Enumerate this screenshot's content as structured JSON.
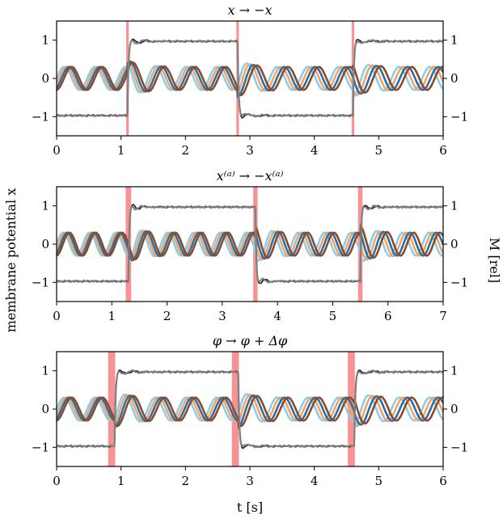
{
  "figure": {
    "ylabel_left": "membrane potential x",
    "ylabel_right": "M [rel]",
    "xlabel": "t [s]"
  },
  "colors": {
    "trace1": "#2b6ea6",
    "trace2": "#8b4a2b",
    "trace3": "#f4a460",
    "trace4": "#87cef0",
    "mean_dark": "#1a1a1a",
    "mean_gray": "#808080",
    "perturbation": "#f88080"
  },
  "chart_data": [
    {
      "type": "line",
      "title": "x → −x",
      "xlim": [
        0,
        6
      ],
      "ylim": [
        -1.5,
        1.5
      ],
      "xticks": [
        0,
        1,
        2,
        3,
        4,
        5,
        6
      ],
      "yticks_left": [
        -1,
        0,
        1
      ],
      "yticks_right": [
        -1,
        0,
        1
      ],
      "perturbations": [
        {
          "start": 1.08,
          "end": 1.12
        },
        {
          "start": 2.79,
          "end": 2.83
        },
        {
          "start": 4.58,
          "end": 4.62
        }
      ],
      "oscillators": {
        "frequency_hz": 2.1,
        "amplitude": 0.3,
        "phases": [
          0.0,
          0.5,
          1.0,
          1.5
        ]
      },
      "order_parameter": {
        "initial": -0.97,
        "switch_times": [
          1.1,
          2.81,
          4.6
        ],
        "levels": [
          0.97,
          -0.97,
          0.97
        ]
      }
    },
    {
      "type": "line",
      "title": "x⁽ᵃ⁾ → −x⁽ᵃ⁾",
      "xlim": [
        0,
        7
      ],
      "ylim": [
        -1.5,
        1.5
      ],
      "xticks": [
        0,
        1,
        2,
        3,
        4,
        5,
        6,
        7
      ],
      "yticks_left": [
        -1,
        0,
        1
      ],
      "yticks_right": [
        -1,
        0,
        1
      ],
      "perturbations": [
        {
          "start": 1.25,
          "end": 1.35
        },
        {
          "start": 3.56,
          "end": 3.64
        },
        {
          "start": 5.46,
          "end": 5.54
        }
      ],
      "oscillators": {
        "frequency_hz": 2.1,
        "amplitude": 0.3,
        "phases": [
          0.0,
          0.5,
          1.0,
          1.5
        ]
      },
      "order_parameter": {
        "initial": -0.97,
        "switch_times": [
          1.3,
          3.6,
          5.5
        ],
        "levels": [
          0.97,
          -0.97,
          0.97
        ]
      }
    },
    {
      "type": "line",
      "title": "φ → φ + Δφ",
      "xlim": [
        0,
        6
      ],
      "ylim": [
        -1.5,
        1.5
      ],
      "xticks": [
        0,
        1,
        2,
        3,
        4,
        5,
        6
      ],
      "yticks_left": [
        -1,
        0,
        1
      ],
      "yticks_right": [
        -1,
        0,
        1
      ],
      "perturbations": [
        {
          "start": 0.8,
          "end": 0.91
        },
        {
          "start": 2.72,
          "end": 2.83
        },
        {
          "start": 4.52,
          "end": 4.63
        }
      ],
      "oscillators": {
        "frequency_hz": 2.1,
        "amplitude": 0.3,
        "phases": [
          0.0,
          0.5,
          1.0,
          1.5
        ]
      },
      "order_parameter": {
        "initial": -0.97,
        "switch_times": [
          0.9,
          2.82,
          4.62
        ],
        "levels": [
          0.97,
          -0.97,
          0.97
        ]
      }
    }
  ]
}
